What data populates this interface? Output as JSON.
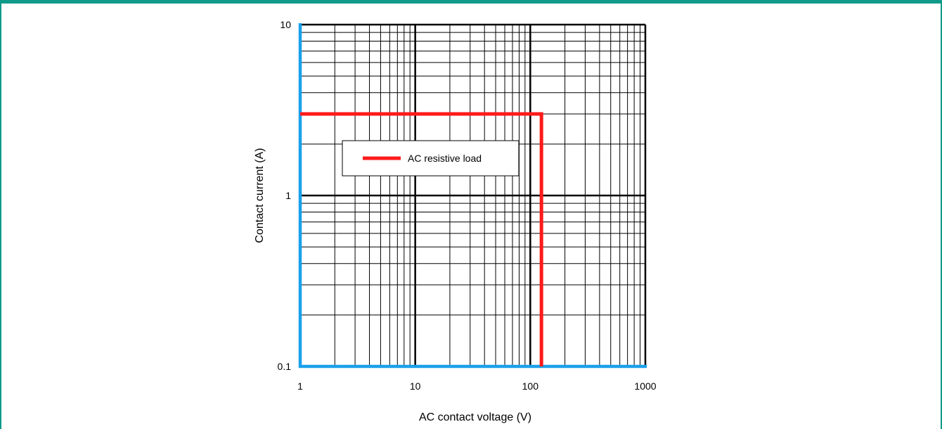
{
  "chart_data": {
    "type": "line",
    "xscale": "log",
    "yscale": "log",
    "xlim": [
      1,
      1000
    ],
    "ylim": [
      0.1,
      10
    ],
    "xlabel": "AC contact voltage (V)",
    "ylabel": "Contact current (A)",
    "x_ticks": [
      {
        "value": 1,
        "label": "1"
      },
      {
        "value": 10,
        "label": "10"
      },
      {
        "value": 100,
        "label": "100"
      },
      {
        "value": 1000,
        "label": "1000"
      }
    ],
    "y_ticks": [
      {
        "value": 0.1,
        "label": "0.1"
      },
      {
        "value": 1,
        "label": "1"
      },
      {
        "value": 10,
        "label": "10"
      }
    ],
    "grid": true,
    "legend": {
      "placement": "upper-left-inside"
    },
    "axis_color": "#1aa0ec",
    "series": [
      {
        "name": "AC resistive load",
        "color": "#ff1a1a",
        "x": [
          1,
          125,
          125
        ],
        "y": [
          3,
          3,
          0.1
        ]
      }
    ]
  }
}
